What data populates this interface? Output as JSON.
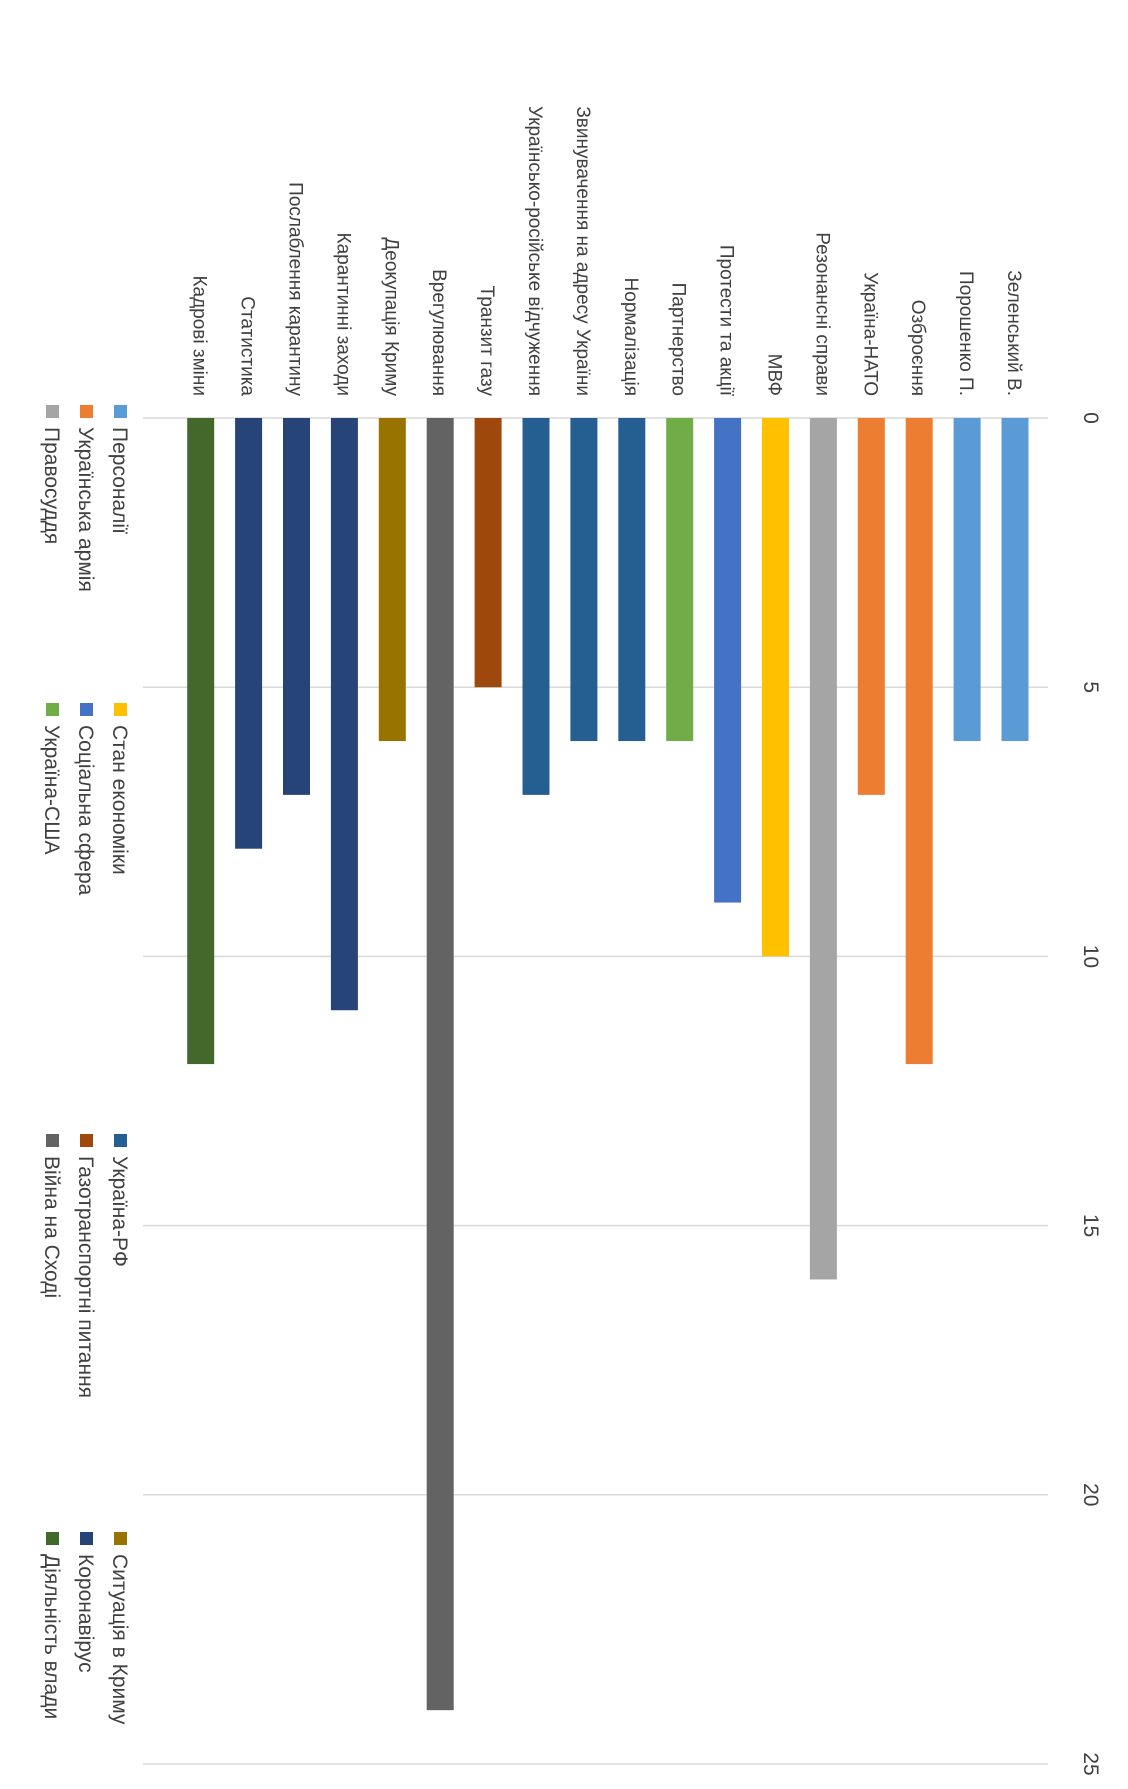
{
  "chart_data": {
    "type": "bar",
    "orientation": "horizontal",
    "title": "",
    "xlabel": "",
    "ylabel": "",
    "xlim": [
      0,
      25
    ],
    "ticks": [
      "0",
      "5",
      "10",
      "15",
      "20",
      "25"
    ],
    "grid": true,
    "legend_position": "bottom",
    "bars": [
      {
        "label": "Зеленський В.",
        "value": 6,
        "series": "Персоналії"
      },
      {
        "label": "Порошенко П.",
        "value": 6,
        "series": "Персоналії"
      },
      {
        "label": "Озброєння",
        "value": 12,
        "series": "Українська армія"
      },
      {
        "label": "Україна-НАТО",
        "value": 7,
        "series": "Українська армія"
      },
      {
        "label": "Резонансні справи",
        "value": 16,
        "series": "Правосуддя"
      },
      {
        "label": "МВФ",
        "value": 10,
        "series": "Стан економіки"
      },
      {
        "label": "Протести та акції",
        "value": 9,
        "series": "Соціальна сфера"
      },
      {
        "label": "Партнерство",
        "value": 6,
        "series": "Україна-США"
      },
      {
        "label": "Нормалізація",
        "value": 6,
        "series": "Україна-РФ"
      },
      {
        "label": "Звинувачення на адресу України",
        "value": 6,
        "series": "Україна-РФ"
      },
      {
        "label": "Українсько-російське відчуження",
        "value": 7,
        "series": "Україна-РФ"
      },
      {
        "label": "Транзит газу",
        "value": 5,
        "series": "Газотранспортні питання"
      },
      {
        "label": "Врегулювання",
        "value": 24,
        "series": "Війна на Сході"
      },
      {
        "label": "Деокупація Криму",
        "value": 6,
        "series": "Ситуація в Криму"
      },
      {
        "label": "Карантинні заходи",
        "value": 11,
        "series": "Коронавірус"
      },
      {
        "label": "Послаблення карантину",
        "value": 7,
        "series": "Коронавірус"
      },
      {
        "label": "Статистика",
        "value": 8,
        "series": "Коронавірус"
      },
      {
        "label": "Кадрові зміни",
        "value": 12,
        "series": "Діяльність влади"
      }
    ],
    "legend": [
      {
        "name": "Персоналії",
        "color": "#5b9bd5"
      },
      {
        "name": "Українська армія",
        "color": "#ed7d31"
      },
      {
        "name": "Правосуддя",
        "color": "#a5a5a5"
      },
      {
        "name": "Стан економіки",
        "color": "#ffc000"
      },
      {
        "name": "Соціальна сфера",
        "color": "#4472c4"
      },
      {
        "name": "Україна-США",
        "color": "#70ad47"
      },
      {
        "name": "Україна-РФ",
        "color": "#255e91"
      },
      {
        "name": "Газотранспортні питання",
        "color": "#9e480e"
      },
      {
        "name": "Війна на Сході",
        "color": "#636363"
      },
      {
        "name": "Ситуація в Криму",
        "color": "#997300"
      },
      {
        "name": "Коронавірус",
        "color": "#264478"
      },
      {
        "name": "Діяльність влади",
        "color": "#43682b"
      }
    ]
  }
}
